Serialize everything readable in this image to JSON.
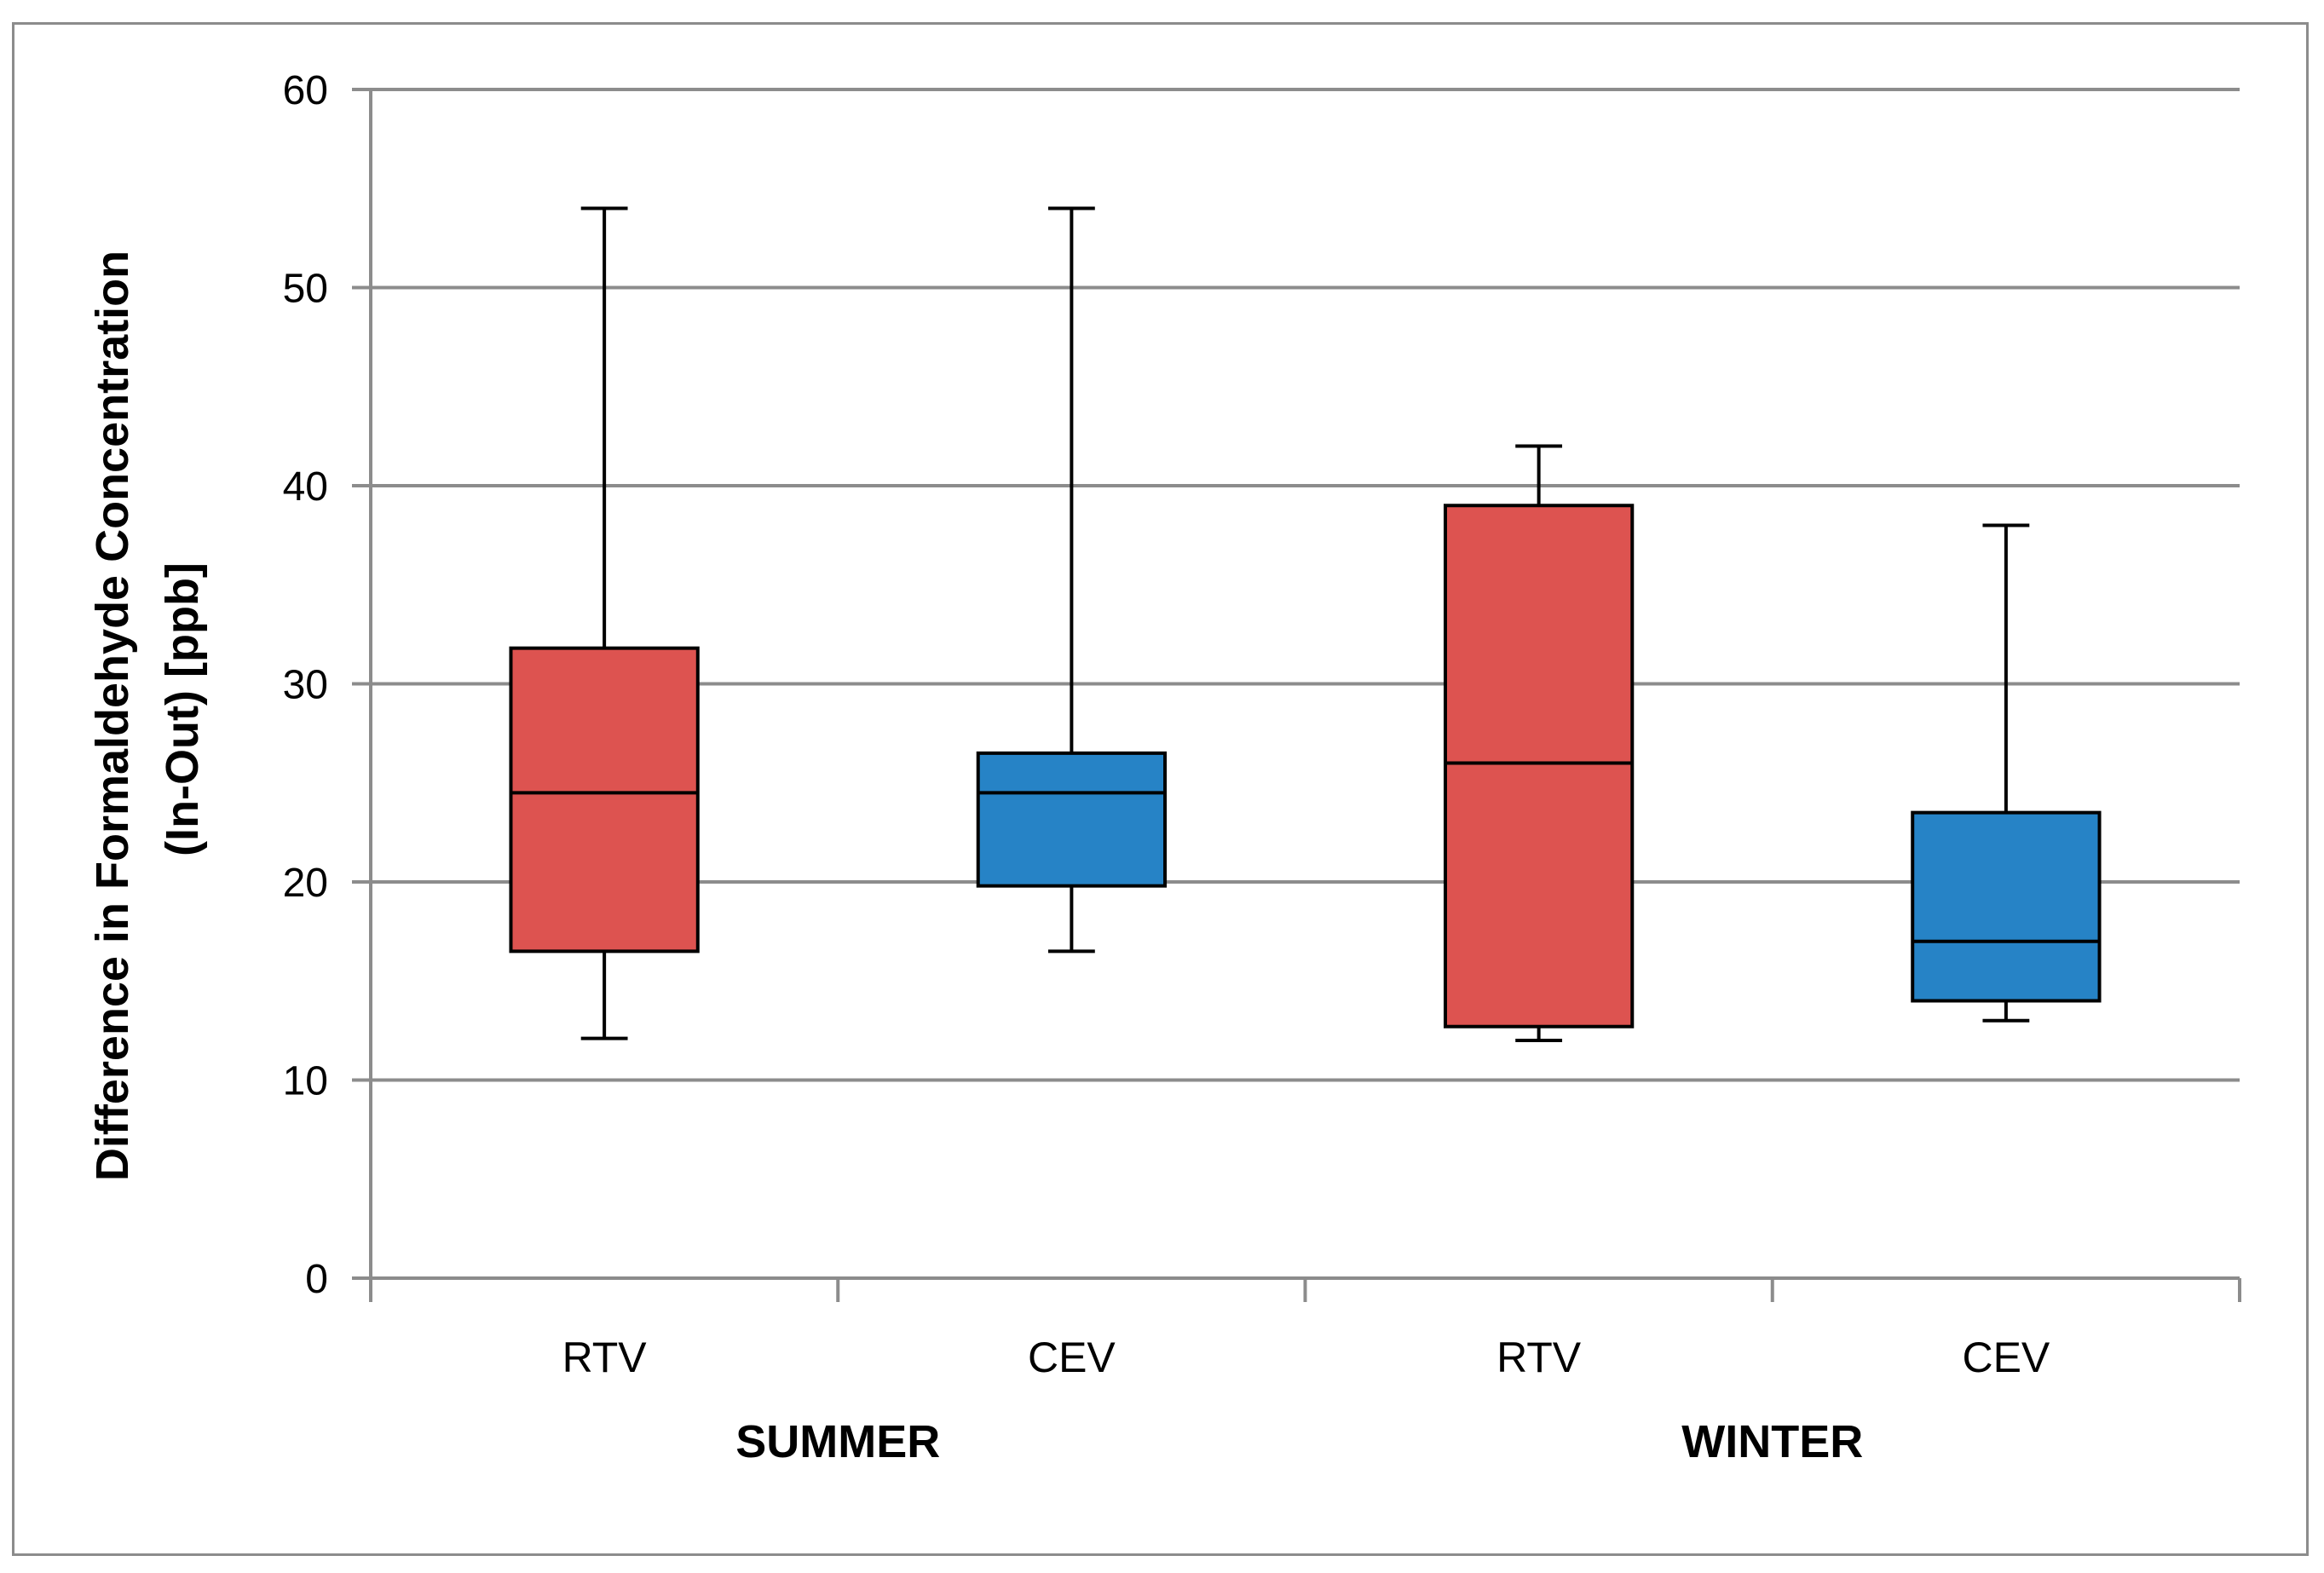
{
  "chart_data": {
    "type": "box",
    "title": "",
    "ylabel_lines": [
      "Difference in Formaldehyde Concentration",
      "(In-Out) [ppb]"
    ],
    "xlabel": "",
    "ylim": [
      0,
      60
    ],
    "yticks": [
      0,
      10,
      20,
      30,
      40,
      50,
      60
    ],
    "grid": true,
    "colors": {
      "RTV": "#dd5350",
      "CEV": "#2683c6",
      "outline": "#000000",
      "grid": "#8c8c8c"
    },
    "groups": [
      {
        "name": "SUMMER",
        "categories": [
          "RTV",
          "CEV"
        ]
      },
      {
        "name": "WINTER",
        "categories": [
          "RTV",
          "CEV"
        ]
      }
    ],
    "series": [
      {
        "group": "SUMMER",
        "category": "RTV",
        "min": 12.1,
        "q1": 16.5,
        "median": 24.5,
        "q3": 31.8,
        "max": 54
      },
      {
        "group": "SUMMER",
        "category": "CEV",
        "min": 16.5,
        "q1": 19.8,
        "median": 24.5,
        "q3": 26.5,
        "max": 54
      },
      {
        "group": "WINTER",
        "category": "RTV",
        "min": 12.0,
        "q1": 12.7,
        "median": 26.0,
        "q3": 39.0,
        "max": 42
      },
      {
        "group": "WINTER",
        "category": "CEV",
        "min": 13.0,
        "q1": 14.0,
        "median": 17.0,
        "q3": 23.5,
        "max": 38
      }
    ]
  }
}
